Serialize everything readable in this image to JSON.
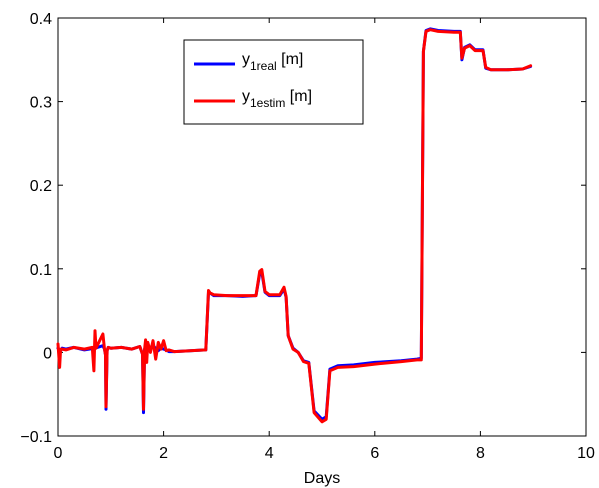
{
  "chart_data": {
    "type": "line",
    "title": "",
    "xlabel": "Days",
    "ylabel": "",
    "xlim": [
      0,
      10
    ],
    "ylim": [
      -0.1,
      0.4
    ],
    "xticks": [
      0,
      2,
      4,
      6,
      8,
      10
    ],
    "xtick_labels": [
      "0",
      "2",
      "4",
      "6",
      "8",
      "10"
    ],
    "yticks": [
      -0.1,
      0,
      0.1,
      0.2,
      0.3,
      0.4
    ],
    "ytick_labels": [
      "−0.1",
      "0",
      "0.1",
      "0.2",
      "0.3",
      "0.4"
    ],
    "grid": false,
    "legend_position": "top-center",
    "series": [
      {
        "name": "y",
        "name_sub": "1real",
        "name_suffix": " [m]",
        "color": "#0000ff",
        "x": [
          0,
          0.05,
          0.08,
          0.15,
          0.3,
          0.5,
          0.7,
          0.85,
          0.88,
          0.9,
          0.91,
          0.93,
          0.95,
          1.0,
          1.2,
          1.4,
          1.55,
          1.6,
          1.62,
          1.64,
          1.66,
          1.7,
          1.8,
          1.9,
          1.95,
          2.0,
          2.05,
          2.1,
          2.2,
          2.5,
          2.8,
          2.85,
          2.88,
          2.95,
          3.2,
          3.5,
          3.75,
          3.82,
          3.86,
          3.92,
          4.0,
          4.2,
          4.28,
          4.32,
          4.36,
          4.45,
          4.55,
          4.65,
          4.75,
          4.85,
          5.0,
          5.08,
          5.15,
          5.3,
          5.6,
          6.0,
          6.5,
          6.8,
          6.88,
          6.92,
          6.97,
          7.05,
          7.2,
          7.5,
          7.62,
          7.65,
          7.7,
          7.8,
          7.9,
          8.05,
          8.1,
          8.2,
          8.5,
          8.8,
          8.95
        ],
        "y": [
          0.005,
          0.002,
          0.005,
          0.004,
          0.006,
          0.003,
          0.005,
          0.008,
          0.004,
          -0.003,
          -0.068,
          0.002,
          0.006,
          0.005,
          0.006,
          0.004,
          0.007,
          -0.002,
          -0.072,
          0.004,
          0.006,
          0.004,
          0.008,
          0.002,
          0.005,
          0.004,
          0.003,
          0.001,
          0.001,
          0.002,
          0.003,
          0.072,
          0.071,
          0.068,
          0.068,
          0.067,
          0.068,
          0.094,
          0.096,
          0.072,
          0.068,
          0.068,
          0.076,
          0.066,
          0.02,
          0.005,
          0.0,
          -0.01,
          -0.012,
          -0.07,
          -0.08,
          -0.077,
          -0.02,
          -0.016,
          -0.015,
          -0.012,
          -0.01,
          -0.008,
          -0.007,
          0.36,
          0.385,
          0.387,
          0.385,
          0.384,
          0.384,
          0.35,
          0.365,
          0.368,
          0.362,
          0.362,
          0.34,
          0.338,
          0.338,
          0.339,
          0.342
        ]
      },
      {
        "name": "y",
        "name_sub": "1estim",
        "name_suffix": " [m]",
        "color": "#ff0000",
        "x": [
          0,
          0.03,
          0.05,
          0.08,
          0.15,
          0.3,
          0.5,
          0.65,
          0.68,
          0.7,
          0.72,
          0.85,
          0.88,
          0.9,
          0.91,
          0.93,
          0.95,
          1.0,
          1.2,
          1.4,
          1.55,
          1.6,
          1.62,
          1.64,
          1.66,
          1.68,
          1.7,
          1.75,
          1.8,
          1.85,
          1.9,
          1.95,
          2.0,
          2.05,
          2.1,
          2.2,
          2.5,
          2.8,
          2.85,
          2.88,
          2.95,
          3.2,
          3.5,
          3.75,
          3.82,
          3.86,
          3.92,
          4.0,
          4.2,
          4.28,
          4.32,
          4.36,
          4.45,
          4.55,
          4.65,
          4.75,
          4.85,
          5.0,
          5.08,
          5.15,
          5.3,
          5.6,
          6.0,
          6.5,
          6.8,
          6.88,
          6.92,
          6.97,
          7.05,
          7.2,
          7.5,
          7.62,
          7.65,
          7.7,
          7.8,
          7.9,
          8.05,
          8.1,
          8.2,
          8.5,
          8.8,
          8.95
        ],
        "y": [
          0.01,
          -0.018,
          0.004,
          0.004,
          0.003,
          0.006,
          0.004,
          0.006,
          -0.022,
          0.026,
          0.005,
          0.022,
          0.004,
          -0.003,
          -0.065,
          0.002,
          0.006,
          0.005,
          0.006,
          0.004,
          0.007,
          -0.002,
          -0.068,
          0.004,
          0.015,
          -0.012,
          0.012,
          0.0,
          0.014,
          -0.008,
          0.012,
          0.004,
          0.014,
          0.002,
          0.003,
          0.001,
          0.002,
          0.003,
          0.074,
          0.071,
          0.069,
          0.068,
          0.068,
          0.068,
          0.097,
          0.099,
          0.073,
          0.069,
          0.069,
          0.078,
          0.067,
          0.02,
          0.004,
          0.0,
          -0.011,
          -0.013,
          -0.072,
          -0.083,
          -0.08,
          -0.022,
          -0.018,
          -0.017,
          -0.014,
          -0.011,
          -0.009,
          -0.009,
          0.36,
          0.384,
          0.386,
          0.384,
          0.383,
          0.383,
          0.352,
          0.364,
          0.367,
          0.361,
          0.361,
          0.341,
          0.338,
          0.338,
          0.339,
          0.343
        ]
      }
    ]
  }
}
